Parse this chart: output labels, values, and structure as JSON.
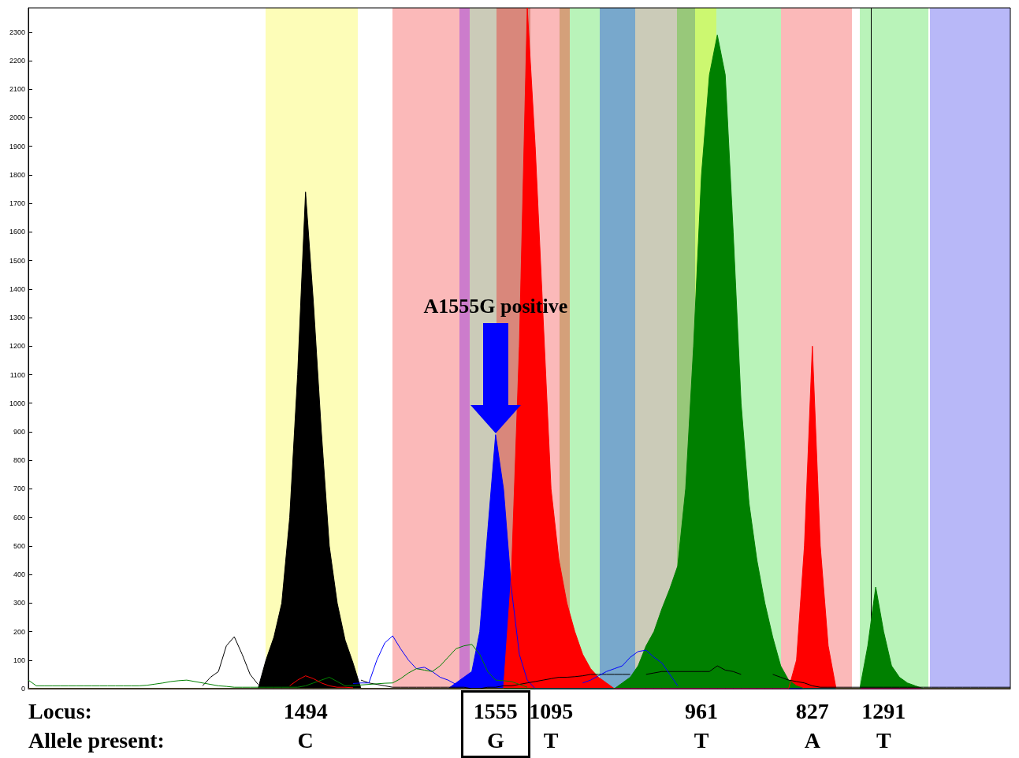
{
  "chart_data": {
    "type": "area",
    "ylim": [
      0,
      2385
    ],
    "yticks": [
      0,
      100,
      200,
      300,
      400,
      500,
      600,
      700,
      800,
      900,
      1000,
      1100,
      1200,
      1300,
      1400,
      1500,
      1600,
      1700,
      1800,
      1900,
      2000,
      2100,
      2200,
      2300
    ],
    "grid": false,
    "marker": "none",
    "categories": [
      null,
      null,
      null,
      null,
      null,
      null,
      null,
      null,
      null,
      null,
      null,
      null,
      null,
      null,
      null,
      null,
      null,
      null,
      null,
      null,
      null,
      null,
      null,
      null,
      null,
      null,
      null,
      null,
      null,
      null,
      null,
      null,
      null,
      null,
      null,
      "1494\nC",
      null,
      null,
      null,
      null,
      null,
      null,
      null,
      null,
      null,
      null,
      null,
      null,
      null,
      null,
      null,
      null,
      null,
      null,
      null,
      null,
      null,
      null,
      null,
      "1555\nG",
      null,
      null,
      null,
      null,
      null,
      null,
      "1095\nT",
      null,
      null,
      null,
      null,
      null,
      null,
      null,
      null,
      null,
      null,
      null,
      null,
      null,
      null,
      null,
      null,
      null,
      null,
      "961\nT",
      null,
      null,
      null,
      null,
      null,
      null,
      null,
      null,
      null,
      null,
      null,
      null,
      null,
      "827\nA",
      null,
      null,
      null,
      null,
      null,
      null,
      null,
      null,
      "1291\nT",
      null,
      null,
      null,
      null,
      null,
      null,
      null,
      null,
      null,
      null,
      null,
      null,
      null,
      null,
      null,
      null
    ],
    "series": [
      {
        "type": "line",
        "color": "#000000",
        "values": [
          null,
          null,
          null,
          null,
          null,
          null,
          null,
          null,
          null,
          null,
          null,
          null,
          null,
          null,
          null,
          null,
          null,
          null,
          null,
          null,
          null,
          null,
          10,
          40,
          60,
          150,
          182,
          120,
          50,
          15,
          null,
          null,
          null,
          null,
          null,
          null,
          null,
          null,
          null,
          null,
          null,
          null,
          30,
          20,
          15,
          10,
          5,
          5,
          5,
          5,
          5,
          5,
          5,
          5,
          5,
          5,
          0,
          0,
          5,
          5,
          10,
          10,
          15,
          20,
          25,
          30,
          35,
          40,
          40,
          42,
          45,
          50,
          50,
          50,
          50,
          50,
          50,
          null,
          50,
          55,
          60,
          60,
          60,
          60,
          60,
          60,
          60,
          80,
          65,
          60,
          50,
          null,
          null,
          null,
          50,
          40,
          30,
          25,
          20,
          10,
          5,
          5,
          5,
          5,
          5,
          5,
          5,
          5,
          5,
          5,
          5,
          5,
          5,
          5,
          5,
          5,
          5,
          5,
          5,
          5,
          5,
          5,
          5,
          5,
          5
        ]
      },
      {
        "type": "line",
        "color": "#0000ff",
        "values": [
          null,
          null,
          null,
          null,
          null,
          null,
          null,
          null,
          null,
          null,
          null,
          null,
          null,
          null,
          null,
          null,
          null,
          null,
          null,
          null,
          null,
          null,
          null,
          null,
          null,
          null,
          null,
          null,
          null,
          null,
          null,
          null,
          null,
          null,
          null,
          null,
          null,
          null,
          null,
          null,
          null,
          18,
          20,
          20,
          100,
          160,
          185,
          140,
          100,
          70,
          75,
          60,
          40,
          30,
          15,
          null,
          null,
          null,
          null,
          null,
          null,
          null,
          null,
          null,
          null,
          null,
          null,
          null,
          null,
          null,
          20,
          30,
          45,
          60,
          70,
          80,
          110,
          130,
          135,
          110,
          90,
          50,
          10,
          null,
          null,
          null,
          null,
          null,
          null,
          null,
          null,
          null,
          null,
          null,
          null,
          null,
          null,
          null,
          null,
          null,
          null,
          null,
          null,
          null,
          null,
          null,
          null,
          null,
          null,
          null,
          null,
          null,
          null,
          null,
          null,
          null,
          null,
          null,
          null,
          null,
          null,
          null,
          null,
          null,
          null
        ]
      },
      {
        "type": "line",
        "color": "#008000",
        "values": [
          30,
          10,
          10,
          10,
          10,
          10,
          10,
          10,
          10,
          10,
          10,
          10,
          10,
          10,
          10,
          12,
          16,
          20,
          25,
          28,
          30,
          25,
          20,
          15,
          10,
          8,
          5,
          5,
          5,
          5,
          5,
          5,
          5,
          5,
          5,
          10,
          20,
          30,
          40,
          25,
          10,
          11,
          13,
          15,
          17,
          19,
          20,
          35,
          55,
          70,
          65,
          60,
          80,
          110,
          140,
          150,
          155,
          120,
          60,
          30,
          28,
          25,
          15,
          5,
          null,
          null,
          null,
          null,
          null,
          null,
          null,
          null,
          null,
          null,
          null,
          null,
          null,
          null,
          null,
          null,
          null,
          null,
          null,
          null,
          null,
          null,
          null,
          null,
          null,
          null,
          null,
          null,
          null,
          null,
          null,
          null,
          null,
          null,
          null,
          null,
          null,
          null,
          null,
          null,
          null,
          null,
          null,
          null,
          null,
          null,
          null,
          null,
          null,
          null,
          null,
          null,
          null,
          null,
          null,
          null,
          null,
          null,
          null,
          null,
          null
        ]
      },
      {
        "type": "line",
        "color": "#ff0000",
        "values": [
          null,
          null,
          null,
          null,
          null,
          null,
          null,
          null,
          null,
          null,
          null,
          null,
          null,
          null,
          null,
          null,
          null,
          null,
          null,
          null,
          null,
          null,
          null,
          null,
          null,
          null,
          null,
          null,
          null,
          null,
          null,
          null,
          null,
          10,
          30,
          45,
          35,
          20,
          10,
          5,
          5,
          3,
          null,
          null,
          null,
          null,
          null,
          null,
          null,
          null,
          null,
          null,
          null,
          null,
          null,
          null,
          null,
          null,
          null,
          null,
          null,
          null,
          null,
          null,
          null,
          null,
          null,
          null,
          null,
          null,
          null,
          null,
          null,
          null,
          null,
          null,
          null,
          null,
          null,
          null,
          null,
          null,
          null,
          null,
          null,
          null,
          null,
          null,
          null,
          null,
          null,
          null,
          null,
          null,
          null,
          null,
          null,
          null,
          null,
          null,
          null,
          null,
          null,
          null,
          null,
          null,
          null,
          null,
          null,
          null,
          null,
          null,
          null,
          null,
          null,
          null,
          null,
          null,
          null,
          null,
          null,
          null,
          null,
          null,
          null
        ]
      },
      {
        "color": "#000000",
        "values": [
          0,
          0,
          0,
          0,
          0,
          0,
          0,
          0,
          0,
          0,
          0,
          0,
          0,
          0,
          0,
          0,
          0,
          0,
          0,
          0,
          0,
          0,
          0,
          0,
          0,
          0,
          0,
          0,
          0,
          0,
          100,
          180,
          300,
          600,
          1100,
          1740,
          1350,
          900,
          500,
          300,
          170,
          90,
          0,
          0,
          0,
          0,
          0,
          0,
          0,
          0,
          0,
          0,
          0,
          0,
          0,
          0,
          0,
          0,
          0,
          0,
          0,
          0,
          0,
          0,
          0,
          0,
          0,
          0,
          0,
          0,
          0,
          0,
          0,
          0,
          0,
          0,
          0,
          0,
          0,
          0,
          0,
          0,
          0,
          0,
          0,
          0,
          0,
          0,
          0,
          0,
          0,
          0,
          0,
          0,
          0,
          0,
          0,
          0,
          0,
          0,
          0,
          0,
          0,
          0,
          0,
          0,
          0,
          0,
          0,
          0,
          0,
          0,
          0,
          0,
          0,
          0,
          0,
          0,
          0,
          0,
          0,
          0,
          0,
          0,
          0
        ]
      },
      {
        "color": "#0000ff",
        "values": [
          0,
          0,
          0,
          0,
          0,
          0,
          0,
          0,
          0,
          0,
          0,
          0,
          0,
          0,
          0,
          0,
          0,
          0,
          0,
          0,
          0,
          0,
          0,
          0,
          0,
          0,
          0,
          0,
          0,
          0,
          0,
          0,
          0,
          0,
          0,
          0,
          0,
          0,
          0,
          0,
          0,
          0,
          0,
          0,
          0,
          0,
          0,
          0,
          0,
          0,
          0,
          0,
          0,
          0,
          20,
          40,
          60,
          200,
          550,
          890,
          700,
          350,
          120,
          30,
          0,
          0,
          0,
          0,
          0,
          0,
          0,
          0,
          0,
          0,
          0,
          0,
          0,
          0,
          0,
          0,
          0,
          0,
          0,
          0,
          0,
          0,
          0,
          0,
          0,
          0,
          0,
          0,
          0,
          0,
          0,
          0,
          0,
          0,
          0,
          0,
          0,
          0,
          0,
          0,
          0,
          0,
          0,
          0,
          0,
          0,
          0,
          0,
          0,
          0,
          0,
          0,
          0,
          0,
          0,
          0,
          0,
          0,
          0,
          0,
          0
        ]
      },
      {
        "color": "#ff0000",
        "values": [
          0,
          0,
          0,
          0,
          0,
          0,
          0,
          0,
          0,
          0,
          0,
          0,
          0,
          0,
          0,
          0,
          0,
          0,
          0,
          0,
          0,
          0,
          0,
          0,
          0,
          0,
          0,
          0,
          0,
          0,
          0,
          0,
          0,
          0,
          0,
          0,
          0,
          0,
          0,
          0,
          0,
          0,
          0,
          0,
          0,
          0,
          0,
          0,
          0,
          0,
          0,
          0,
          0,
          0,
          0,
          0,
          0,
          0,
          0,
          0,
          0,
          400,
          1200,
          2385,
          1900,
          1300,
          700,
          450,
          300,
          200,
          120,
          70,
          40,
          20,
          0,
          0,
          0,
          0,
          0,
          0,
          0,
          0,
          0,
          0,
          0,
          0,
          0,
          0,
          0,
          0,
          0,
          0,
          0,
          0,
          0,
          0,
          0,
          100,
          500,
          1200,
          500,
          150,
          0,
          0,
          0,
          0,
          0,
          0,
          0,
          0,
          0,
          0,
          0,
          0,
          0,
          0,
          0,
          0,
          0,
          0,
          0,
          0,
          0,
          0,
          0
        ]
      },
      {
        "color": "#008000",
        "values": [
          0,
          0,
          0,
          0,
          0,
          0,
          0,
          0,
          0,
          0,
          0,
          0,
          0,
          0,
          0,
          0,
          0,
          0,
          0,
          0,
          0,
          0,
          0,
          0,
          0,
          0,
          0,
          0,
          0,
          0,
          0,
          0,
          0,
          0,
          0,
          0,
          0,
          0,
          0,
          0,
          0,
          0,
          0,
          0,
          0,
          0,
          0,
          0,
          0,
          0,
          0,
          0,
          0,
          0,
          0,
          0,
          0,
          0,
          0,
          0,
          0,
          0,
          0,
          0,
          0,
          0,
          0,
          0,
          0,
          0,
          0,
          0,
          0,
          0,
          0,
          20,
          40,
          80,
          150,
          200,
          280,
          350,
          430,
          700,
          1200,
          1800,
          2150,
          2290,
          2150,
          1600,
          1000,
          650,
          450,
          300,
          180,
          80,
          30,
          10,
          0,
          0,
          0,
          0,
          0,
          0,
          0,
          0,
          150,
          356,
          200,
          80,
          40,
          20,
          10,
          0,
          0,
          0,
          0,
          0,
          0,
          0,
          0,
          0,
          0,
          0,
          0
        ]
      }
    ],
    "annotations": [
      "A1555G positive",
      "Locus:",
      "Allele present:"
    ]
  }
}
